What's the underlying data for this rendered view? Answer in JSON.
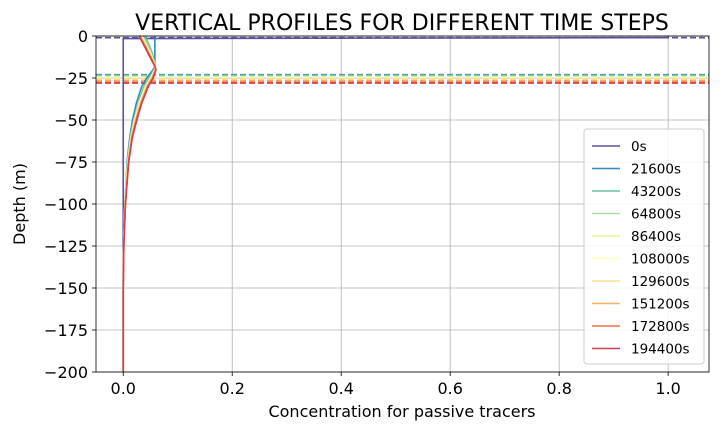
{
  "chart_data": {
    "type": "line",
    "title": "VERTICAL PROFILES FOR DIFFERENT TIME STEPS",
    "xlabel": "Concentration for passive tracers",
    "ylabel": "Depth (m)",
    "xlim": [
      -0.05,
      1.075
    ],
    "ylim": [
      -200,
      0
    ],
    "xticks": [
      0.0,
      0.2,
      0.4,
      0.6,
      0.8,
      1.0
    ],
    "xtick_labels": [
      "0.0",
      "0.2",
      "0.4",
      "0.6",
      "0.8",
      "1.0"
    ],
    "yticks": [
      0,
      -25,
      -50,
      -75,
      -100,
      -125,
      -150,
      -175,
      -200
    ],
    "ytick_labels": [
      "0",
      "−25",
      "−50",
      "−75",
      "−100",
      "−125",
      "−150",
      "−175",
      "−200"
    ],
    "grid": true,
    "legend_position": "lower-right",
    "series": [
      {
        "name": "0s",
        "color": "#5e4fa2",
        "mld": -1.0,
        "depth": [
          0,
          -1,
          -1.5,
          -200
        ],
        "conc": [
          1.0,
          1.0,
          0.0,
          0.0
        ]
      },
      {
        "name": "21600s",
        "color": "#3288bd",
        "mld": -23.0,
        "depth": [
          0,
          -5,
          -10,
          -15,
          -18,
          -20,
          -25,
          -30,
          -40,
          -50,
          -60,
          -75,
          -100,
          -125,
          -150,
          -175,
          -200
        ],
        "conc": [
          0.058,
          0.058,
          0.058,
          0.058,
          0.058,
          0.055,
          0.043,
          0.034,
          0.024,
          0.017,
          0.012,
          0.007,
          0.003,
          0.001,
          0.0,
          0.0,
          0.0
        ]
      },
      {
        "name": "43200s",
        "color": "#66c2a5",
        "mld": -23.5,
        "depth": [
          0,
          -5,
          -10,
          -15,
          -18,
          -20,
          -25,
          -30,
          -40,
          -50,
          -60,
          -75,
          -100,
          -125,
          -150,
          -175,
          -200
        ],
        "conc": [
          0.04,
          0.047,
          0.053,
          0.057,
          0.058,
          0.057,
          0.047,
          0.038,
          0.027,
          0.019,
          0.013,
          0.008,
          0.003,
          0.001,
          0.0,
          0.0,
          0.0
        ]
      },
      {
        "name": "64800s",
        "color": "#abdda4",
        "mld": -24.0,
        "depth": [
          0,
          -5,
          -10,
          -15,
          -18,
          -20,
          -25,
          -30,
          -40,
          -50,
          -60,
          -75,
          -100,
          -125,
          -150,
          -175,
          -200
        ],
        "conc": [
          0.036,
          0.044,
          0.051,
          0.056,
          0.058,
          0.058,
          0.049,
          0.04,
          0.028,
          0.02,
          0.014,
          0.008,
          0.003,
          0.001,
          0.0,
          0.0,
          0.0
        ]
      },
      {
        "name": "86400s",
        "color": "#e6f598",
        "mld": -24.5,
        "depth": [
          0,
          -5,
          -10,
          -15,
          -18,
          -20,
          -25,
          -30,
          -40,
          -50,
          -60,
          -75,
          -100,
          -125,
          -150,
          -175,
          -200
        ],
        "conc": [
          0.034,
          0.042,
          0.05,
          0.056,
          0.058,
          0.058,
          0.05,
          0.041,
          0.029,
          0.021,
          0.014,
          0.008,
          0.003,
          0.001,
          0.0,
          0.0,
          0.0
        ]
      },
      {
        "name": "108000s",
        "color": "#ffffbf",
        "mld": -25.0,
        "depth": [
          0,
          -5,
          -10,
          -15,
          -18,
          -20,
          -25,
          -30,
          -40,
          -50,
          -60,
          -75,
          -100,
          -125,
          -150,
          -175,
          -200
        ],
        "conc": [
          0.033,
          0.041,
          0.049,
          0.055,
          0.058,
          0.058,
          0.051,
          0.042,
          0.03,
          0.021,
          0.015,
          0.009,
          0.003,
          0.001,
          0.0,
          0.0,
          0.0
        ]
      },
      {
        "name": "129600s",
        "color": "#fee08b",
        "mld": -25.5,
        "depth": [
          0,
          -5,
          -10,
          -15,
          -18,
          -20,
          -25,
          -30,
          -40,
          -50,
          -60,
          -75,
          -100,
          -125,
          -150,
          -175,
          -200
        ],
        "conc": [
          0.032,
          0.04,
          0.048,
          0.055,
          0.058,
          0.059,
          0.052,
          0.043,
          0.031,
          0.022,
          0.015,
          0.009,
          0.003,
          0.001,
          0.0,
          0.0,
          0.0
        ]
      },
      {
        "name": "151200s",
        "color": "#fdae61",
        "mld": -26.5,
        "depth": [
          0,
          -5,
          -10,
          -15,
          -18,
          -20,
          -25,
          -30,
          -40,
          -50,
          -60,
          -75,
          -100,
          -125,
          -150,
          -175,
          -200
        ],
        "conc": [
          0.031,
          0.039,
          0.047,
          0.054,
          0.058,
          0.059,
          0.053,
          0.044,
          0.032,
          0.023,
          0.016,
          0.009,
          0.004,
          0.001,
          0.0,
          0.0,
          0.0
        ]
      },
      {
        "name": "172800s",
        "color": "#f46d43",
        "mld": -27.5,
        "depth": [
          0,
          -5,
          -10,
          -15,
          -18,
          -20,
          -25,
          -30,
          -40,
          -50,
          -60,
          -75,
          -100,
          -125,
          -150,
          -175,
          -200
        ],
        "conc": [
          0.03,
          0.038,
          0.046,
          0.054,
          0.058,
          0.06,
          0.054,
          0.045,
          0.033,
          0.024,
          0.016,
          0.01,
          0.004,
          0.001,
          0.0,
          0.0,
          0.0
        ]
      },
      {
        "name": "194400s",
        "color": "#d53e4f",
        "mld": -28.0,
        "depth": [
          0,
          -5,
          -10,
          -15,
          -18,
          -20,
          -25,
          -30,
          -40,
          -50,
          -60,
          -75,
          -100,
          -125,
          -150,
          -175,
          -200
        ],
        "conc": [
          0.029,
          0.037,
          0.045,
          0.053,
          0.058,
          0.06,
          0.055,
          0.046,
          0.034,
          0.025,
          0.017,
          0.01,
          0.004,
          0.001,
          0.0,
          0.0,
          0.0
        ]
      }
    ]
  }
}
